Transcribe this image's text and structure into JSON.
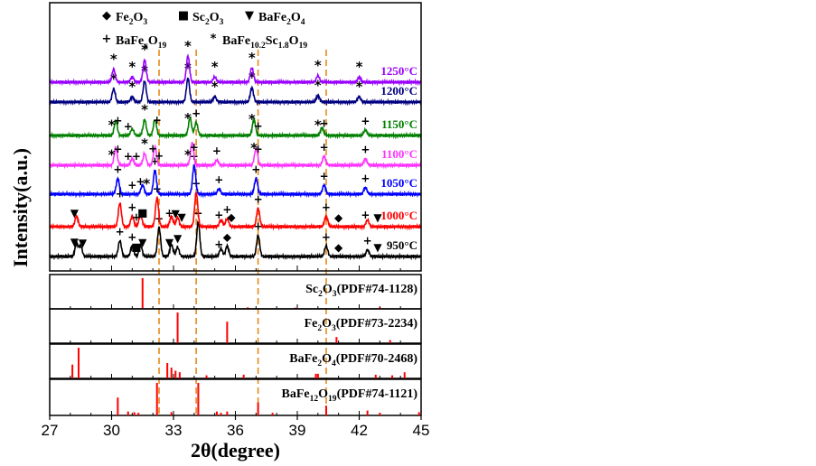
{
  "chart_data": {
    "type": "line",
    "xlabel": "2θ(degree)",
    "ylabel": "Intensity(a.u.)",
    "xlim": [
      27,
      45
    ],
    "xticks": [
      "27",
      "30",
      "33",
      "36",
      "39",
      "42",
      "45"
    ],
    "legend": [
      {
        "symbol": "◆",
        "label_main": "Fe",
        "sub1": "2",
        "mid": "O",
        "sub2": "3",
        "tail": ""
      },
      {
        "symbol": "■",
        "label_main": "Sc",
        "sub1": "2",
        "mid": "O",
        "sub2": "3",
        "tail": ""
      },
      {
        "symbol": "▼",
        "label_main": "BaFe",
        "sub1": "2",
        "mid": "O",
        "sub2": "4",
        "tail": ""
      },
      {
        "symbol": "+",
        "label_main": "BaFe",
        "sub1": "x",
        "mid": "O",
        "sub2": "19",
        "tail": ""
      },
      {
        "symbol": "*",
        "label_main": "BaFe",
        "sub1": "10.2",
        "mid": "Sc",
        "sub2": "1.8",
        "tail": "O",
        "sub3": "19"
      }
    ],
    "reference_lines": [
      32.3,
      34.1,
      37.1,
      40.4
    ],
    "series": [
      {
        "name": "950°C",
        "color": "#000000",
        "peaks": [
          [
            28.3,
            10
          ],
          [
            28.5,
            8
          ],
          [
            30.4,
            12
          ],
          [
            31.0,
            8
          ],
          [
            31.4,
            9
          ],
          [
            32.3,
            22
          ],
          [
            32.9,
            9
          ],
          [
            33.2,
            7
          ],
          [
            34.2,
            26
          ],
          [
            35.3,
            6
          ],
          [
            35.6,
            8
          ],
          [
            37.1,
            16
          ],
          [
            40.4,
            8
          ],
          [
            42.4,
            5
          ]
        ],
        "markers": [
          [
            28.2,
            "▼"
          ],
          [
            28.6,
            "▼"
          ],
          [
            30.4,
            "+"
          ],
          [
            31.0,
            "+"
          ],
          [
            31.2,
            "■"
          ],
          [
            31.5,
            "▼"
          ],
          [
            32.3,
            "+"
          ],
          [
            32.8,
            "▼"
          ],
          [
            33.2,
            "▼"
          ],
          [
            34.2,
            "+"
          ],
          [
            35.2,
            "+"
          ],
          [
            35.6,
            "◆"
          ],
          [
            37.1,
            "+"
          ],
          [
            40.4,
            "+"
          ],
          [
            41.0,
            "◆"
          ],
          [
            42.4,
            "+"
          ],
          [
            42.9,
            "▼"
          ]
        ]
      },
      {
        "name": "1000°C",
        "color": "#ff0000",
        "peaks": [
          [
            28.3,
            8
          ],
          [
            30.4,
            18
          ],
          [
            31.0,
            8
          ],
          [
            31.4,
            9
          ],
          [
            32.2,
            22
          ],
          [
            32.9,
            8
          ],
          [
            33.2,
            7
          ],
          [
            34.1,
            26
          ],
          [
            35.3,
            5
          ],
          [
            35.6,
            6
          ],
          [
            37.1,
            14
          ],
          [
            40.4,
            8
          ],
          [
            42.4,
            5
          ]
        ],
        "markers": [
          [
            28.2,
            "▼"
          ],
          [
            30.4,
            "+"
          ],
          [
            31.0,
            "+"
          ],
          [
            31.2,
            "+"
          ],
          [
            31.5,
            "■"
          ],
          [
            32.2,
            "+"
          ],
          [
            32.8,
            "+"
          ],
          [
            33.1,
            "▼"
          ],
          [
            33.4,
            "▼"
          ],
          [
            34.1,
            "+"
          ],
          [
            35.2,
            "+"
          ],
          [
            35.6,
            "+"
          ],
          [
            35.8,
            "◆"
          ],
          [
            37.1,
            "+"
          ],
          [
            40.4,
            "+"
          ],
          [
            41.0,
            "◆"
          ],
          [
            42.3,
            "+"
          ],
          [
            42.9,
            "▼"
          ]
        ]
      },
      {
        "name": "1050°C",
        "color": "#0000ff",
        "peaks": [
          [
            30.3,
            12
          ],
          [
            31.5,
            7
          ],
          [
            32.1,
            18
          ],
          [
            34.0,
            22
          ],
          [
            35.2,
            4
          ],
          [
            37.0,
            12
          ],
          [
            40.3,
            7
          ],
          [
            42.3,
            5
          ]
        ],
        "markers": [
          [
            30.3,
            "+"
          ],
          [
            31.0,
            "+"
          ],
          [
            31.4,
            "+"
          ],
          [
            31.7,
            "*"
          ],
          [
            32.1,
            "+"
          ],
          [
            34.0,
            "+"
          ],
          [
            35.2,
            "+"
          ],
          [
            37.0,
            "+"
          ],
          [
            40.3,
            "+"
          ],
          [
            42.3,
            "+"
          ]
        ]
      },
      {
        "name": "1100°C",
        "color": "#ff33ff",
        "peaks": [
          [
            30.2,
            13
          ],
          [
            31.0,
            5
          ],
          [
            31.6,
            9
          ],
          [
            32.1,
            14
          ],
          [
            33.9,
            17
          ],
          [
            35.1,
            4
          ],
          [
            37.0,
            13
          ],
          [
            40.3,
            7
          ],
          [
            42.3,
            5
          ]
        ],
        "markers": [
          [
            30.0,
            "*"
          ],
          [
            30.3,
            "+"
          ],
          [
            30.8,
            "+"
          ],
          [
            31.2,
            "+"
          ],
          [
            31.6,
            "*"
          ],
          [
            32.0,
            "+"
          ],
          [
            32.3,
            "+"
          ],
          [
            33.7,
            "*"
          ],
          [
            34.0,
            "+"
          ],
          [
            35.1,
            "+"
          ],
          [
            36.9,
            "*"
          ],
          [
            37.1,
            "+"
          ],
          [
            40.3,
            "+"
          ],
          [
            42.3,
            "+"
          ]
        ]
      },
      {
        "name": "1150°C",
        "color": "#008000",
        "peaks": [
          [
            30.2,
            11
          ],
          [
            31.0,
            5
          ],
          [
            31.6,
            12
          ],
          [
            32.1,
            12
          ],
          [
            33.8,
            13
          ],
          [
            34.1,
            10
          ],
          [
            36.9,
            12
          ],
          [
            40.2,
            6
          ],
          [
            42.3,
            4
          ]
        ],
        "markers": [
          [
            30.0,
            "*"
          ],
          [
            30.3,
            "+"
          ],
          [
            30.8,
            "+"
          ],
          [
            31.6,
            "*"
          ],
          [
            32.2,
            "+"
          ],
          [
            33.7,
            "*"
          ],
          [
            34.1,
            "+"
          ],
          [
            36.8,
            "*"
          ],
          [
            37.1,
            "+"
          ],
          [
            40.0,
            "*"
          ],
          [
            40.3,
            "+"
          ],
          [
            42.3,
            "+"
          ]
        ]
      },
      {
        "name": "1200°C",
        "color": "#000080",
        "peaks": [
          [
            30.1,
            10
          ],
          [
            31.0,
            4
          ],
          [
            31.6,
            16
          ],
          [
            33.7,
            18
          ],
          [
            35.0,
            4
          ],
          [
            36.8,
            11
          ],
          [
            40.0,
            5
          ],
          [
            42.0,
            4
          ]
        ],
        "markers": [
          [
            30.1,
            "*"
          ],
          [
            31.0,
            "*"
          ],
          [
            31.6,
            "*"
          ],
          [
            33.7,
            "*"
          ],
          [
            35.0,
            "*"
          ],
          [
            36.8,
            "*"
          ],
          [
            40.0,
            "*"
          ],
          [
            42.0,
            "*"
          ]
        ]
      },
      {
        "name": "1250°C",
        "color": "#9900ff",
        "peaks": [
          [
            30.1,
            10
          ],
          [
            31.0,
            4
          ],
          [
            31.6,
            17
          ],
          [
            33.7,
            20
          ],
          [
            35.0,
            4
          ],
          [
            36.8,
            11
          ],
          [
            40.0,
            5
          ],
          [
            42.0,
            4
          ]
        ],
        "markers": [
          [
            30.1,
            "*"
          ],
          [
            31.0,
            "*"
          ],
          [
            31.6,
            "*"
          ],
          [
            33.7,
            "*"
          ],
          [
            35.0,
            "*"
          ],
          [
            36.8,
            "*"
          ],
          [
            40.0,
            "*"
          ],
          [
            42.0,
            "*"
          ]
        ]
      }
    ],
    "reference_panels": [
      {
        "name_main": "Sc",
        "sub1": "2",
        "mid": "O",
        "sub2": "3",
        "code": "(PDF#74-1128)",
        "sticks": [
          [
            31.5,
            1.0
          ],
          [
            36.6,
            0.05
          ],
          [
            38.9,
            0.04
          ],
          [
            43.0,
            0.06
          ]
        ]
      },
      {
        "name_main": "Fe",
        "sub1": "2",
        "mid": "O",
        "sub2": "3",
        "code": "(PDF#73-2234)",
        "sticks": [
          [
            33.2,
            1.0
          ],
          [
            35.6,
            0.7
          ],
          [
            40.9,
            0.2
          ],
          [
            43.5,
            0.1
          ]
        ]
      },
      {
        "name_main": "BaFe",
        "sub1": "2",
        "mid": "O",
        "sub2": "4",
        "code": "(PDF#70-2468)",
        "sticks": [
          [
            28.1,
            0.45
          ],
          [
            28.4,
            1.0
          ],
          [
            32.7,
            0.5
          ],
          [
            32.9,
            0.35
          ],
          [
            33.1,
            0.25
          ],
          [
            33.3,
            0.2
          ],
          [
            34.6,
            0.1
          ],
          [
            36.4,
            0.12
          ],
          [
            39.9,
            0.15
          ],
          [
            40.0,
            0.15
          ],
          [
            42.8,
            0.12
          ],
          [
            43.6,
            0.1
          ],
          [
            44.2,
            0.2
          ]
        ]
      },
      {
        "name_main": "BaFe",
        "sub1": "12",
        "mid": "O",
        "sub2": "19",
        "code": "(PDF#74-1121)",
        "sticks": [
          [
            30.3,
            0.55
          ],
          [
            30.8,
            0.12
          ],
          [
            31.1,
            0.1
          ],
          [
            31.3,
            0.08
          ],
          [
            32.2,
            1.0
          ],
          [
            32.9,
            0.1
          ],
          [
            34.2,
            1.0
          ],
          [
            35.1,
            0.12
          ],
          [
            35.3,
            0.08
          ],
          [
            35.6,
            0.12
          ],
          [
            37.1,
            0.4
          ],
          [
            37.8,
            0.08
          ],
          [
            40.4,
            0.3
          ],
          [
            42.4,
            0.15
          ],
          [
            43.0,
            0.08
          ],
          [
            44.9,
            0.1
          ]
        ]
      }
    ]
  }
}
